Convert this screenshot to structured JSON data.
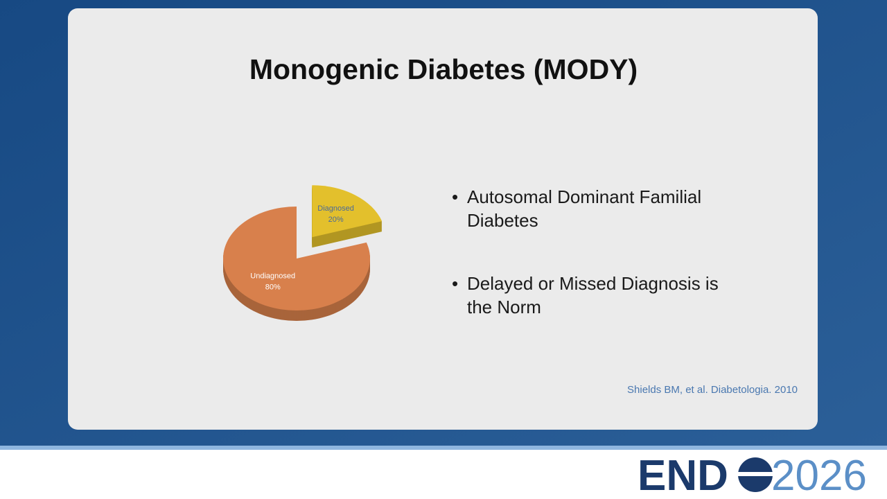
{
  "slide": {
    "title": "Monogenic Diabetes (MODY)",
    "bullets": [
      "Autosomal Dominant Familial Diabetes",
      "Delayed or Missed Diagnosis is the Norm"
    ],
    "citation": "Shields BM, et al. Diabetologia. 2010"
  },
  "logo": {
    "left": "END",
    "right": "2026"
  },
  "chart_data": {
    "type": "pie",
    "categories": [
      "Diagnosed",
      "Undiagnosed"
    ],
    "values": [
      20,
      80
    ],
    "value_labels": [
      "20%",
      "80%"
    ],
    "colors": [
      "#e3c02c",
      "#d8804c"
    ],
    "exploded": [
      true,
      false
    ]
  }
}
